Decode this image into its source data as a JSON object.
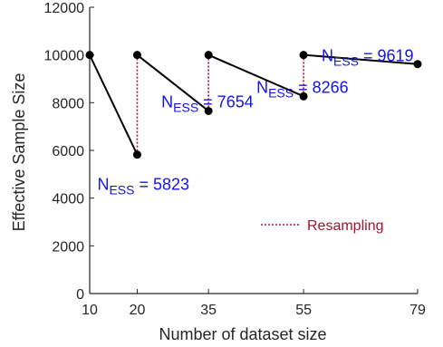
{
  "chart_data": {
    "type": "line",
    "xlabel": "Number of dataset size",
    "ylabel": "Effective Sample Size",
    "xlim": [
      10,
      79
    ],
    "ylim": [
      0,
      12000
    ],
    "x_ticks": [
      10,
      20,
      35,
      55,
      79
    ],
    "y_ticks": [
      0,
      2000,
      4000,
      6000,
      8000,
      10000,
      12000
    ],
    "segments": [
      {
        "x": [
          10,
          20
        ],
        "y": [
          10000,
          5823
        ]
      },
      {
        "x": [
          20,
          35
        ],
        "y": [
          10000,
          7654
        ]
      },
      {
        "x": [
          35,
          55
        ],
        "y": [
          10000,
          8266
        ]
      },
      {
        "x": [
          55,
          79
        ],
        "y": [
          10000,
          9619
        ]
      }
    ],
    "resampling_lines": [
      {
        "x": 20,
        "y_from": 5823,
        "y_to": 10000
      },
      {
        "x": 35,
        "y_from": 7654,
        "y_to": 10000
      },
      {
        "x": 55,
        "y_from": 8266,
        "y_to": 10000
      }
    ],
    "annotations": [
      {
        "prefix": "N",
        "subscript": "ESS",
        "equals": " = ",
        "value": "5823",
        "x": 20,
        "y": 5823
      },
      {
        "prefix": "N",
        "subscript": "ESS",
        "equals": " = ",
        "value": "7654",
        "x": 35,
        "y": 7654
      },
      {
        "prefix": "N",
        "subscript": "ESS",
        "equals": " = ",
        "value": "8266",
        "x": 55,
        "y": 8266
      },
      {
        "prefix": "N",
        "subscript": "ESS",
        "equals": " = ",
        "value": "9619",
        "x": 79,
        "y": 9619
      }
    ],
    "legend": {
      "label": "Resampling",
      "placement": "lower-right"
    },
    "grid": false,
    "colors": {
      "line": "#000000",
      "marker": "#000000",
      "resampling": "#a2142f",
      "annotation": "#1414e6",
      "axis": "#262626"
    }
  }
}
